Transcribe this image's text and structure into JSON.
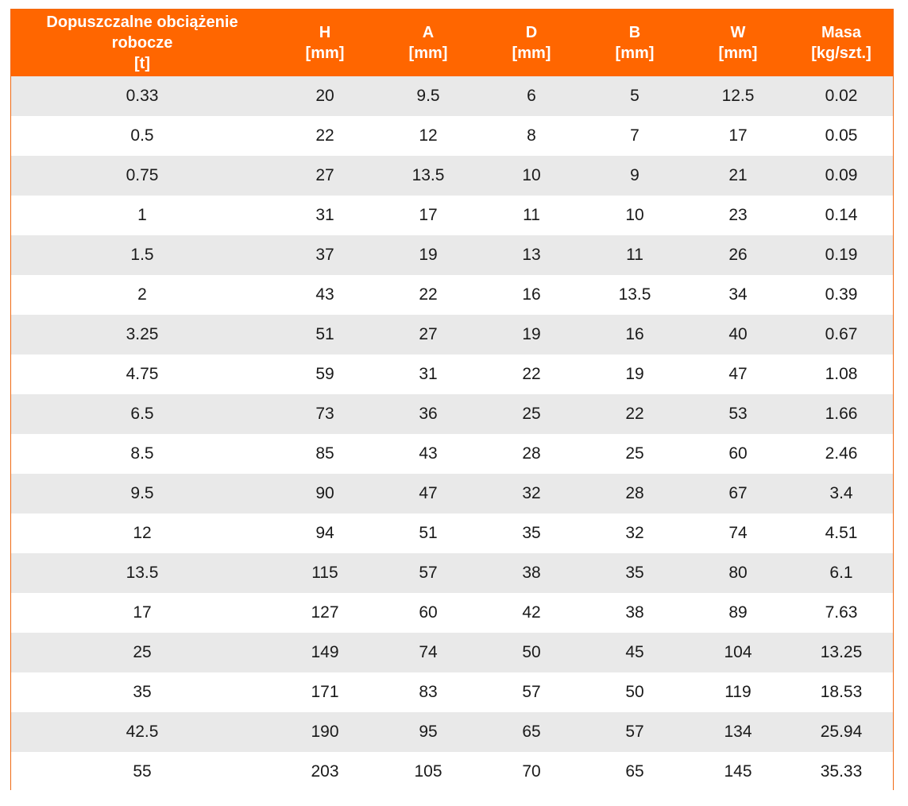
{
  "table": {
    "headers": [
      {
        "line1": "Dopuszczalne obciążenie",
        "line2": "robocze",
        "line3": "[t]"
      },
      {
        "line1": "H",
        "line2": "[mm]",
        "line3": ""
      },
      {
        "line1": "A",
        "line2": "[mm]",
        "line3": ""
      },
      {
        "line1": "D",
        "line2": "[mm]",
        "line3": ""
      },
      {
        "line1": "B",
        "line2": "[mm]",
        "line3": ""
      },
      {
        "line1": "W",
        "line2": "[mm]",
        "line3": ""
      },
      {
        "line1": "Masa",
        "line2": "[kg/szt.]",
        "line3": ""
      }
    ],
    "rows": [
      [
        "0.33",
        "20",
        "9.5",
        "6",
        "5",
        "12.5",
        "0.02"
      ],
      [
        "0.5",
        "22",
        "12",
        "8",
        "7",
        "17",
        "0.05"
      ],
      [
        "0.75",
        "27",
        "13.5",
        "10",
        "9",
        "21",
        "0.09"
      ],
      [
        "1",
        "31",
        "17",
        "11",
        "10",
        "23",
        "0.14"
      ],
      [
        "1.5",
        "37",
        "19",
        "13",
        "11",
        "26",
        "0.19"
      ],
      [
        "2",
        "43",
        "22",
        "16",
        "13.5",
        "34",
        "0.39"
      ],
      [
        "3.25",
        "51",
        "27",
        "19",
        "16",
        "40",
        "0.67"
      ],
      [
        "4.75",
        "59",
        "31",
        "22",
        "19",
        "47",
        "1.08"
      ],
      [
        "6.5",
        "73",
        "36",
        "25",
        "22",
        "53",
        "1.66"
      ],
      [
        "8.5",
        "85",
        "43",
        "28",
        "25",
        "60",
        "2.46"
      ],
      [
        "9.5",
        "90",
        "47",
        "32",
        "28",
        "67",
        "3.4"
      ],
      [
        "12",
        "94",
        "51",
        "35",
        "32",
        "74",
        "4.51"
      ],
      [
        "13.5",
        "115",
        "57",
        "38",
        "35",
        "80",
        "6.1"
      ],
      [
        "17",
        "127",
        "60",
        "42",
        "38",
        "89",
        "7.63"
      ],
      [
        "25",
        "149",
        "74",
        "50",
        "45",
        "104",
        "13.25"
      ],
      [
        "35",
        "171",
        "83",
        "57",
        "50",
        "119",
        "18.53"
      ],
      [
        "42.5",
        "190",
        "95",
        "65",
        "57",
        "134",
        "25.94"
      ],
      [
        "55",
        "203",
        "105",
        "70",
        "65",
        "145",
        "35.33"
      ]
    ]
  },
  "colors": {
    "header_bg": "#ff6600",
    "header_text": "#ffffff",
    "row_stripe": "#e9e9e9",
    "border": "#f06a14"
  }
}
